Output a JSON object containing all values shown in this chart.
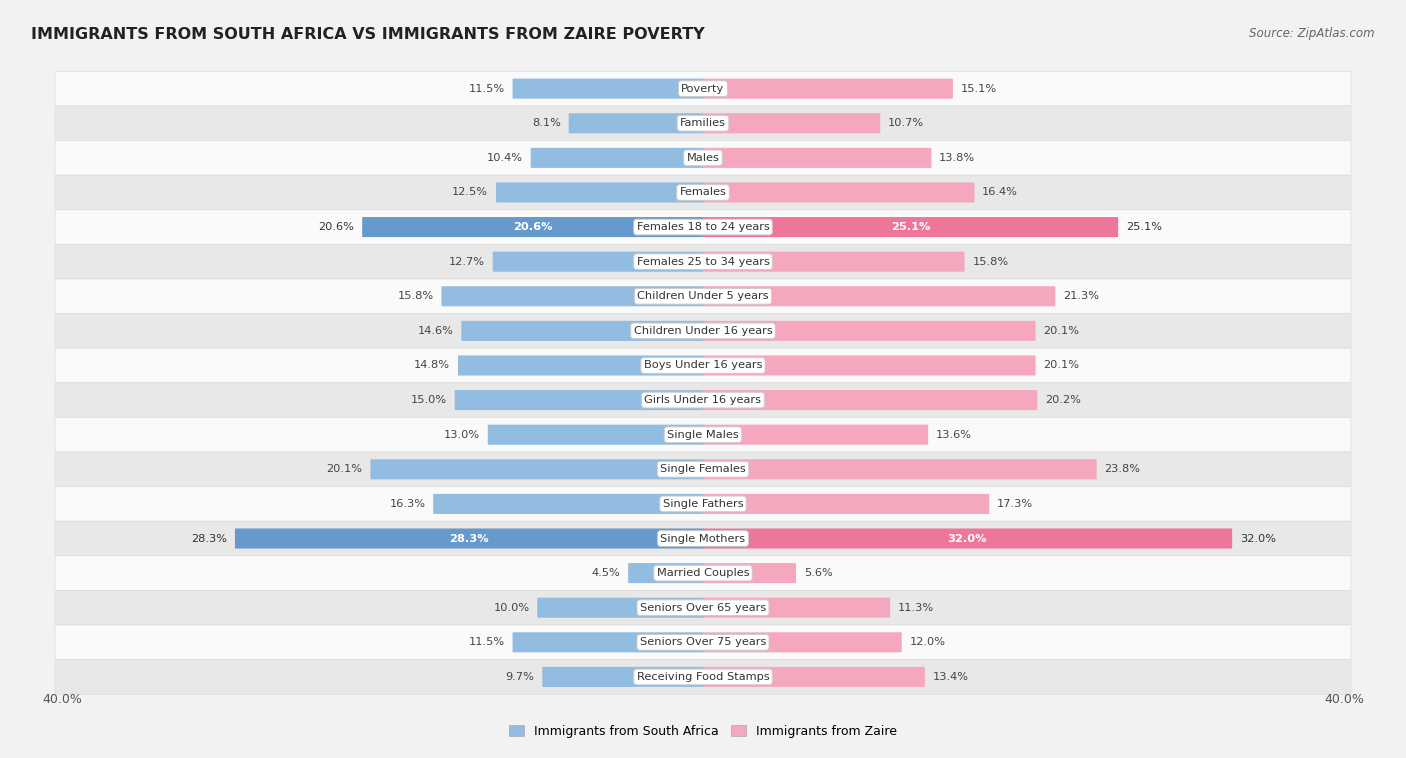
{
  "title": "IMMIGRANTS FROM SOUTH AFRICA VS IMMIGRANTS FROM ZAIRE POVERTY",
  "source": "Source: ZipAtlas.com",
  "categories": [
    "Poverty",
    "Families",
    "Males",
    "Females",
    "Females 18 to 24 years",
    "Females 25 to 34 years",
    "Children Under 5 years",
    "Children Under 16 years",
    "Boys Under 16 years",
    "Girls Under 16 years",
    "Single Males",
    "Single Females",
    "Single Fathers",
    "Single Mothers",
    "Married Couples",
    "Seniors Over 65 years",
    "Seniors Over 75 years",
    "Receiving Food Stamps"
  ],
  "south_africa": [
    11.5,
    8.1,
    10.4,
    12.5,
    20.6,
    12.7,
    15.8,
    14.6,
    14.8,
    15.0,
    13.0,
    20.1,
    16.3,
    28.3,
    4.5,
    10.0,
    11.5,
    9.7
  ],
  "zaire": [
    15.1,
    10.7,
    13.8,
    16.4,
    25.1,
    15.8,
    21.3,
    20.1,
    20.1,
    20.2,
    13.6,
    23.8,
    17.3,
    32.0,
    5.6,
    11.3,
    12.0,
    13.4
  ],
  "color_sa": "#92bce0",
  "color_zaire": "#f5a7be",
  "color_sa_highlight": "#6699cc",
  "color_zaire_highlight": "#ee7799",
  "bg_color": "#f2f2f2",
  "row_bg_light": "#fafafa",
  "row_bg_dark": "#e8e8e8",
  "axis_max": 40.0,
  "bar_height": 0.52,
  "legend_sa": "Immigrants from South Africa",
  "legend_zaire": "Immigrants from Zaire"
}
